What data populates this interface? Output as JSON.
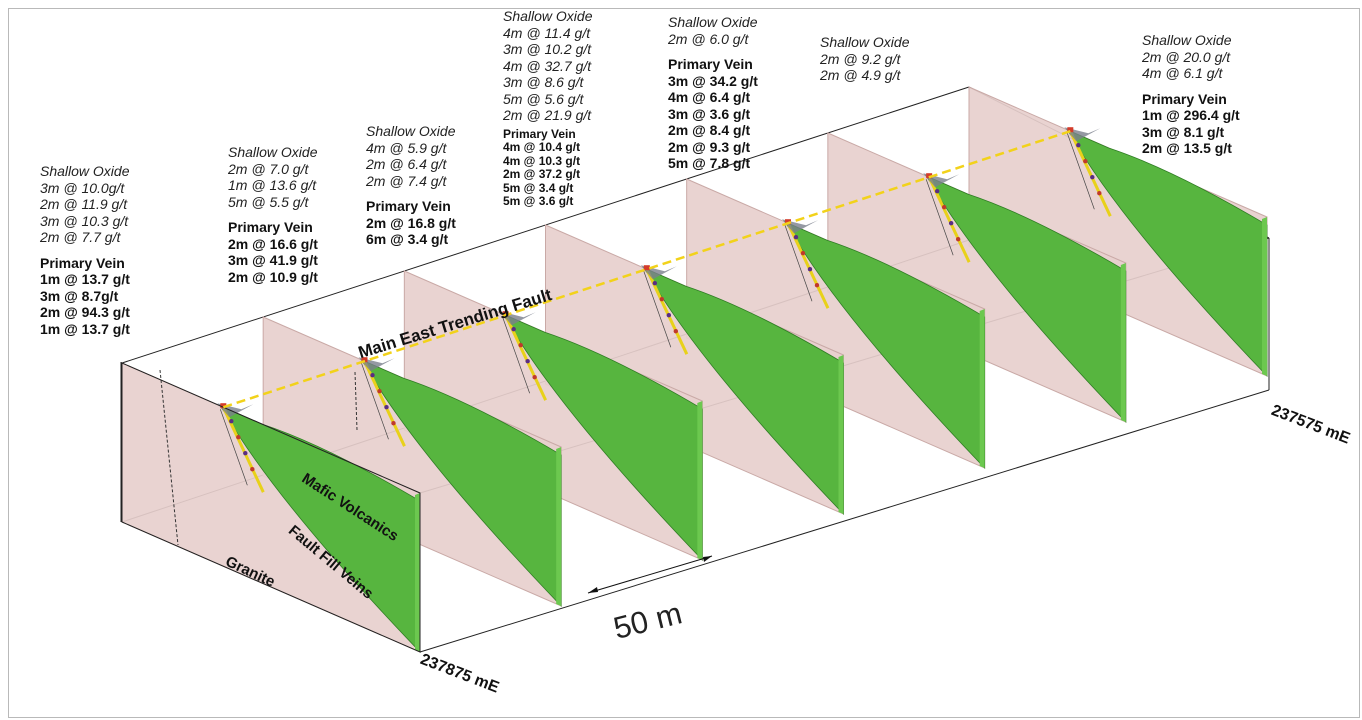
{
  "labels": {
    "fault": "Main East Trending Fault",
    "mafic": "Mafic Volcanics",
    "fault_fill": "Fault Fill Veins",
    "granite": "Granite",
    "east_left": "237875 mE",
    "east_right": "237575 mE",
    "scale": "50 m"
  },
  "intercepts": [
    {
      "oxide_title": "Shallow Oxide",
      "oxide": [
        "3m @ 10.0g/t",
        "2m @ 11.9 g/t",
        "3m @ 10.3 g/t",
        "2m @ 7.7 g/t"
      ],
      "vein_title": "Primary Vein",
      "vein": [
        "1m @ 13.7 g/t",
        "3m @ 8.7g/t",
        "2m @ 94.3 g/t",
        "1m @ 13.7 g/t"
      ]
    },
    {
      "oxide_title": "Shallow Oxide",
      "oxide": [
        "2m @ 7.0 g/t",
        "1m @ 13.6 g/t",
        "5m @ 5.5 g/t"
      ],
      "vein_title": "Primary Vein",
      "vein": [
        "2m @ 16.6 g/t",
        "3m @ 41.9 g/t",
        "2m @ 10.9 g/t"
      ]
    },
    {
      "oxide_title": "Shallow Oxide",
      "oxide": [
        "4m @ 5.9 g/t",
        "2m @ 6.4 g/t",
        "2m @ 7.4 g/t"
      ],
      "vein_title": "Primary Vein",
      "vein": [
        "2m @ 16.8 g/t",
        "6m @ 3.4 g/t"
      ]
    },
    {
      "oxide_title": "Shallow Oxide",
      "oxide": [
        "4m @ 11.4 g/t",
        "3m @ 10.2 g/t",
        "4m @ 32.7 g/t",
        "3m @ 8.6 g/t",
        "5m @ 5.6 g/t",
        "2m @ 21.9 g/t"
      ],
      "vein_title": "Primary Vein",
      "vein": [
        "4m @ 10.4 g/t",
        "4m @ 10.3 g/t",
        "2m @ 37.2 g/t",
        "5m @ 3.4 g/t",
        "5m @ 3.6 g/t"
      ]
    },
    {
      "oxide_title": "Shallow Oxide",
      "oxide": [
        "2m @ 6.0 g/t"
      ],
      "vein_title": "Primary Vein",
      "vein": [
        "3m @ 34.2 g/t",
        "4m @ 6.4 g/t",
        "3m @ 3.6 g/t",
        "2m @ 8.4 g/t",
        "2m @ 9.3 g/t",
        "5m @ 7.8 g/t"
      ]
    },
    {
      "oxide_title": "Shallow Oxide",
      "oxide": [
        "2m @ 9.2 g/t",
        "2m @ 4.9 g/t"
      ],
      "vein_title": "",
      "vein": []
    },
    {
      "oxide_title": "Shallow Oxide",
      "oxide": [
        "2m @ 20.0 g/t",
        "4m @ 6.1 g/t"
      ],
      "vein_title": "Primary Vein",
      "vein": [
        "1m @ 296.4 g/t",
        "3m @ 8.1 g/t",
        "2m @ 13.5 g/t"
      ]
    }
  ],
  "colors": {
    "section_fill": "#e7cfcd",
    "section_edge": "#c9a9a6",
    "mafic_green": "#57b53f",
    "mafic_dark": "#2f7d24",
    "fault_line": "#f2d21a",
    "vein_yellow": "#e8d11a"
  }
}
